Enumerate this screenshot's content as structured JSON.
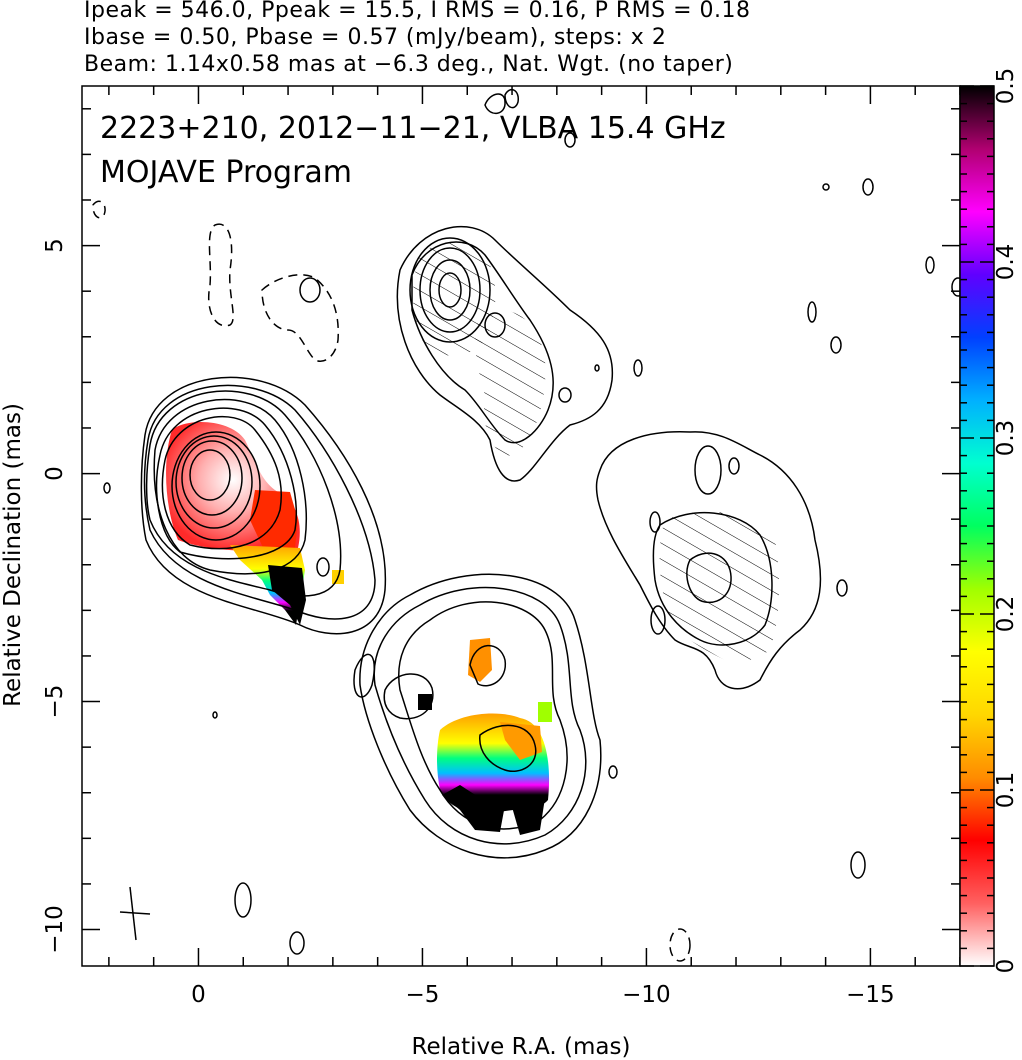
{
  "header": {
    "line1": "Ipeak = 546.0, Ppeak = 15.5, I RMS = 0.16, P RMS = 0.18",
    "line2": "Ibase = 0.50, Pbase = 0.57 (mJy/beam), steps: x 2",
    "line3": "Beam: 1.14x0.58 mas at −6.3 deg., Nat. Wgt. (no taper)"
  },
  "plot_title": {
    "line1": "2223+210, 2012−11−21, VLBA 15.4 GHz",
    "line2": "MOJAVE Program"
  },
  "chart_data": {
    "type": "contour_map",
    "xlabel": "Relative R.A. (mas)",
    "ylabel": "Relative Declination (mas)",
    "xlim": [
      2.6,
      -17
    ],
    "ylim": [
      -10.8,
      8.5
    ],
    "x_ticks": [
      {
        "v": 0,
        "label": "0"
      },
      {
        "v": -5,
        "label": "−5"
      },
      {
        "v": -10,
        "label": "−10"
      },
      {
        "v": -15,
        "label": "−15"
      }
    ],
    "y_ticks": [
      {
        "v": 5,
        "label": "5"
      },
      {
        "v": 0,
        "label": "0"
      },
      {
        "v": -5,
        "label": "−5"
      },
      {
        "v": -10,
        "label": "−10"
      }
    ],
    "colorbar": {
      "label_ticks": [
        {
          "v": 0,
          "label": "0"
        },
        {
          "v": 0.1,
          "label": "0.1"
        },
        {
          "v": 0.2,
          "label": "0.2"
        },
        {
          "v": 0.3,
          "label": "0.3"
        },
        {
          "v": 0.4,
          "label": "0.4"
        },
        {
          "v": 0.5,
          "label": "0.5"
        }
      ],
      "range": [
        0,
        0.5
      ],
      "stops": [
        "#ffffff",
        "#ff6060",
        "#ff0000",
        "#ff8c00",
        "#ffd700",
        "#ffff00",
        "#a0ff00",
        "#00ff60",
        "#00ffd0",
        "#00b0ff",
        "#0040ff",
        "#6000ff",
        "#ff00ff",
        "#b00070",
        "#000000"
      ]
    },
    "core": {
      "x": 0.3,
      "y": 0.1
    },
    "beam": {
      "major_mas": 1.14,
      "minor_mas": 0.58,
      "pa_deg": -6.3,
      "x": -1.6,
      "y": -9.7
    }
  }
}
